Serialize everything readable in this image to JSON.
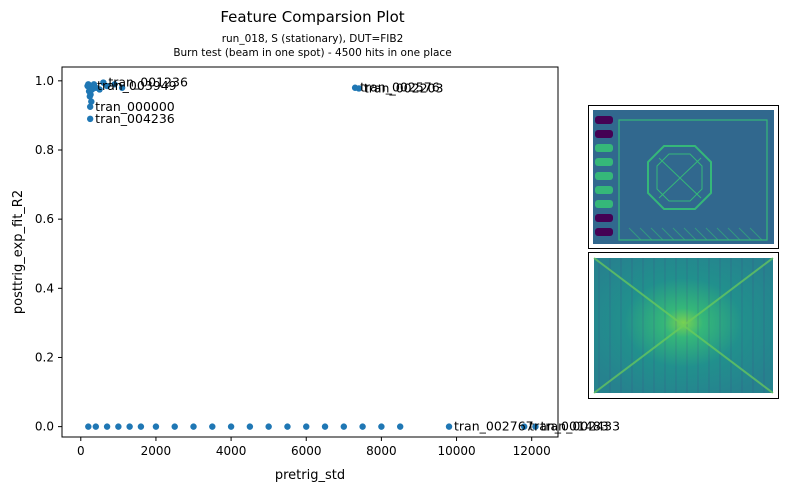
{
  "header": {
    "title": "Feature Comparsion Plot",
    "subtitle_line1": "run_018, S (stationary), DUT=FIB2",
    "subtitle_line2": "Burn test (beam in one spot) - 4500 hits in one place"
  },
  "colors": {
    "points": "#1f77b4",
    "thumb1_bg": "#31688e",
    "thumb1_accent": "#35b779",
    "thumb1_dark": "#440154",
    "thumb2_bg": "#2a788e",
    "thumb2_accent": "#6ece58"
  },
  "thumbnails": [
    {
      "icon": "die-layout-image"
    },
    {
      "icon": "beam-spot-image"
    }
  ],
  "chart_data": {
    "type": "scatter",
    "title": "Feature Comparsion Plot",
    "xlabel": "pretrig_std",
    "ylabel": "posttrig_exp_fit_R2",
    "xlim": [
      -500,
      12700
    ],
    "ylim": [
      -0.03,
      1.04
    ],
    "xticks": [
      "0",
      "2000",
      "4000",
      "6000",
      "8000",
      "10000",
      "12000"
    ],
    "xtick_values": [
      0,
      2000,
      4000,
      6000,
      8000,
      10000,
      12000
    ],
    "yticks": [
      "0.0",
      "0.2",
      "0.4",
      "0.6",
      "0.8",
      "1.0"
    ],
    "ytick_values": [
      0.0,
      0.2,
      0.4,
      0.6,
      0.8,
      1.0
    ],
    "grid": false,
    "points": [
      {
        "x": 250,
        "y": 0.925,
        "label": "tran_000000"
      },
      {
        "x": 250,
        "y": 0.89,
        "label": "tran_004236"
      },
      {
        "x": 7300,
        "y": 0.98,
        "label": "tran_002576"
      },
      {
        "x": 7400,
        "y": 0.978,
        "label": "tran_002203"
      },
      {
        "x": 300,
        "y": 0.985,
        "label": "tran_003949"
      },
      {
        "x": 600,
        "y": 0.995,
        "label": "tran_001236"
      },
      {
        "x": 200,
        "y": 0.99,
        "label": ""
      },
      {
        "x": 180,
        "y": 0.985,
        "label": ""
      },
      {
        "x": 220,
        "y": 0.97,
        "label": ""
      },
      {
        "x": 260,
        "y": 0.96,
        "label": ""
      },
      {
        "x": 300,
        "y": 0.975,
        "label": ""
      },
      {
        "x": 350,
        "y": 0.99,
        "label": ""
      },
      {
        "x": 400,
        "y": 0.98,
        "label": ""
      },
      {
        "x": 500,
        "y": 0.975,
        "label": ""
      },
      {
        "x": 700,
        "y": 0.985,
        "label": ""
      },
      {
        "x": 900,
        "y": 0.99,
        "label": ""
      },
      {
        "x": 1100,
        "y": 0.98,
        "label": ""
      },
      {
        "x": 280,
        "y": 0.94,
        "label": ""
      },
      {
        "x": 240,
        "y": 0.955,
        "label": ""
      },
      {
        "x": 200,
        "y": 0.0,
        "label": ""
      },
      {
        "x": 400,
        "y": 0.0,
        "label": ""
      },
      {
        "x": 700,
        "y": 0.0,
        "label": ""
      },
      {
        "x": 1000,
        "y": 0.0,
        "label": ""
      },
      {
        "x": 1300,
        "y": 0.0,
        "label": ""
      },
      {
        "x": 1600,
        "y": 0.0,
        "label": ""
      },
      {
        "x": 2000,
        "y": 0.0,
        "label": ""
      },
      {
        "x": 2500,
        "y": 0.0,
        "label": ""
      },
      {
        "x": 3000,
        "y": 0.0,
        "label": ""
      },
      {
        "x": 3500,
        "y": 0.0,
        "label": ""
      },
      {
        "x": 4000,
        "y": 0.0,
        "label": ""
      },
      {
        "x": 4500,
        "y": 0.0,
        "label": ""
      },
      {
        "x": 5000,
        "y": 0.0,
        "label": ""
      },
      {
        "x": 5500,
        "y": 0.0,
        "label": ""
      },
      {
        "x": 6000,
        "y": 0.0,
        "label": ""
      },
      {
        "x": 6500,
        "y": 0.0,
        "label": ""
      },
      {
        "x": 7000,
        "y": 0.0,
        "label": ""
      },
      {
        "x": 7500,
        "y": 0.0,
        "label": ""
      },
      {
        "x": 8000,
        "y": 0.0,
        "label": ""
      },
      {
        "x": 8500,
        "y": 0.0,
        "label": ""
      },
      {
        "x": 9800,
        "y": 0.0,
        "label": "tran_002767"
      },
      {
        "x": 11800,
        "y": 0.0,
        "label": "tran_001483"
      },
      {
        "x": 12100,
        "y": 0.0,
        "label": "tran_002433"
      }
    ]
  }
}
